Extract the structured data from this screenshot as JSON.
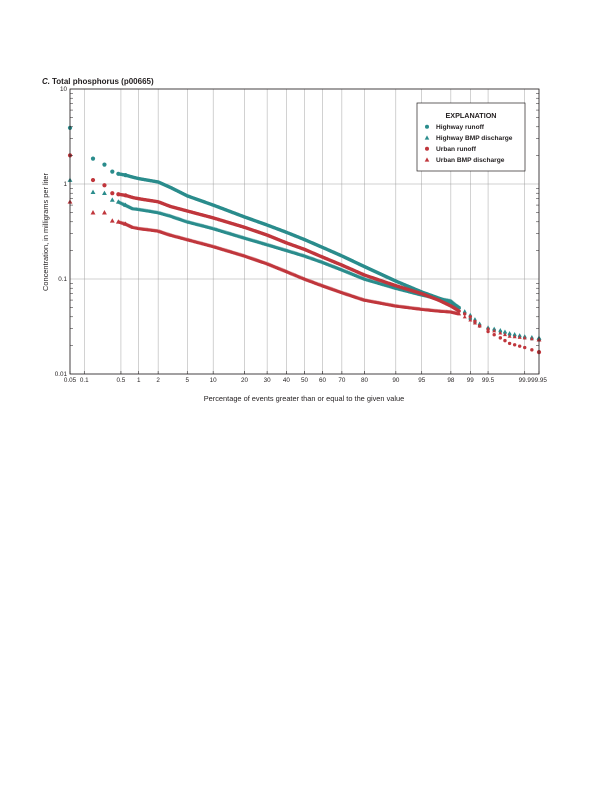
{
  "figure": {
    "panel_title_letter": "C.",
    "panel_title": "Total phosphorus (p00665)"
  },
  "chart_data": {
    "type": "scatter",
    "title": "C. Total phosphorus (p00665)",
    "xlabel": "Percentage of events greater than or equal to the given value",
    "ylabel": "Concentration, in milligrams per liter",
    "x_scale": "normal-probability",
    "y_scale": "log",
    "ylim": [
      0.01,
      10
    ],
    "xlim": [
      0.05,
      99.95
    ],
    "grid": true,
    "legend_placement": "top-right",
    "legend_title": "EXPLANATION",
    "x_ticks": [
      {
        "value": 0.05,
        "label": "0.05"
      },
      {
        "value": 0.1,
        "label": "0.1"
      },
      {
        "value": 0.5,
        "label": "0.5"
      },
      {
        "value": 1,
        "label": "1"
      },
      {
        "value": 2,
        "label": "2"
      },
      {
        "value": 5,
        "label": "5"
      },
      {
        "value": 10,
        "label": "10"
      },
      {
        "value": 20,
        "label": "20"
      },
      {
        "value": 30,
        "label": "30"
      },
      {
        "value": 40,
        "label": "40"
      },
      {
        "value": 50,
        "label": "50"
      },
      {
        "value": 60,
        "label": "60"
      },
      {
        "value": 70,
        "label": "70"
      },
      {
        "value": 80,
        "label": "80"
      },
      {
        "value": 90,
        "label": "90"
      },
      {
        "value": 95,
        "label": "95"
      },
      {
        "value": 98,
        "label": "98"
      },
      {
        "value": 99,
        "label": "99"
      },
      {
        "value": 99.5,
        "label": "99.5"
      },
      {
        "value": 99.9,
        "label": "99.9"
      },
      {
        "value": 99.95,
        "label": "99.95"
      }
    ],
    "y_ticks": [
      {
        "value": 0.01,
        "label": "0.01"
      },
      {
        "value": 0.1,
        "label": "0.1"
      },
      {
        "value": 1,
        "label": "1"
      },
      {
        "value": 10,
        "label": "10"
      }
    ],
    "series": [
      {
        "name": "Highway runoff",
        "marker": "circle",
        "color": "#2a8c8c",
        "points": [
          [
            0.05,
            3.9
          ],
          [
            0.15,
            1.85
          ],
          [
            0.25,
            1.6
          ],
          [
            0.35,
            1.35
          ],
          [
            0.45,
            1.28
          ],
          [
            0.6,
            1.24
          ],
          [
            0.8,
            1.18
          ],
          [
            1,
            1.14
          ],
          [
            2,
            1.05
          ],
          [
            3,
            0.92
          ],
          [
            5,
            0.75
          ],
          [
            10,
            0.6
          ],
          [
            20,
            0.45
          ],
          [
            30,
            0.37
          ],
          [
            40,
            0.31
          ],
          [
            50,
            0.26
          ],
          [
            60,
            0.215
          ],
          [
            70,
            0.175
          ],
          [
            80,
            0.135
          ],
          [
            90,
            0.095
          ],
          [
            95,
            0.073
          ],
          [
            97,
            0.063
          ],
          [
            98,
            0.057
          ],
          [
            98.5,
            0.05
          ],
          [
            99,
            0.038
          ],
          [
            99.3,
            0.032
          ],
          [
            99.5,
            0.03
          ],
          [
            99.7,
            0.028
          ],
          [
            99.8,
            0.026
          ],
          [
            99.9,
            0.024
          ],
          [
            99.95,
            0.023
          ]
        ]
      },
      {
        "name": "Highway BMP discharge",
        "marker": "triangle",
        "color": "#2a8c8c",
        "points": [
          [
            0.05,
            1.1
          ],
          [
            0.15,
            0.82
          ],
          [
            0.25,
            0.8
          ],
          [
            0.35,
            0.68
          ],
          [
            0.45,
            0.65
          ],
          [
            0.6,
            0.6
          ],
          [
            0.8,
            0.55
          ],
          [
            1,
            0.54
          ],
          [
            2,
            0.5
          ],
          [
            3,
            0.46
          ],
          [
            5,
            0.4
          ],
          [
            10,
            0.34
          ],
          [
            20,
            0.27
          ],
          [
            30,
            0.23
          ],
          [
            40,
            0.2
          ],
          [
            50,
            0.175
          ],
          [
            60,
            0.15
          ],
          [
            70,
            0.125
          ],
          [
            80,
            0.1
          ],
          [
            90,
            0.08
          ],
          [
            95,
            0.068
          ],
          [
            97,
            0.062
          ],
          [
            98,
            0.059
          ],
          [
            98.5,
            0.05
          ],
          [
            99,
            0.042
          ],
          [
            99.3,
            0.034
          ],
          [
            99.5,
            0.031
          ],
          [
            99.7,
            0.029
          ],
          [
            99.8,
            0.027
          ],
          [
            99.9,
            0.025
          ],
          [
            99.95,
            0.024
          ]
        ]
      },
      {
        "name": "Urban runoff",
        "marker": "circle",
        "color": "#c0363c",
        "points": [
          [
            0.05,
            2.0
          ],
          [
            0.15,
            1.1
          ],
          [
            0.25,
            0.97
          ],
          [
            0.35,
            0.8
          ],
          [
            0.45,
            0.78
          ],
          [
            0.6,
            0.76
          ],
          [
            0.8,
            0.72
          ],
          [
            1,
            0.7
          ],
          [
            2,
            0.65
          ],
          [
            3,
            0.58
          ],
          [
            5,
            0.52
          ],
          [
            10,
            0.44
          ],
          [
            20,
            0.35
          ],
          [
            30,
            0.29
          ],
          [
            40,
            0.24
          ],
          [
            50,
            0.205
          ],
          [
            60,
            0.17
          ],
          [
            70,
            0.14
          ],
          [
            80,
            0.11
          ],
          [
            90,
            0.085
          ],
          [
            95,
            0.07
          ],
          [
            97,
            0.06
          ],
          [
            98,
            0.052
          ],
          [
            98.5,
            0.046
          ],
          [
            99,
            0.04
          ],
          [
            99.3,
            0.032
          ],
          [
            99.5,
            0.028
          ],
          [
            99.7,
            0.024
          ],
          [
            99.8,
            0.021
          ],
          [
            99.9,
            0.019
          ],
          [
            99.95,
            0.017
          ]
        ]
      },
      {
        "name": "Urban BMP discharge",
        "marker": "triangle",
        "color": "#c0363c",
        "points": [
          [
            0.05,
            0.65
          ],
          [
            0.15,
            0.5
          ],
          [
            0.25,
            0.5
          ],
          [
            0.35,
            0.41
          ],
          [
            0.45,
            0.4
          ],
          [
            0.6,
            0.38
          ],
          [
            0.8,
            0.35
          ],
          [
            1,
            0.34
          ],
          [
            2,
            0.32
          ],
          [
            3,
            0.29
          ],
          [
            5,
            0.26
          ],
          [
            10,
            0.22
          ],
          [
            20,
            0.175
          ],
          [
            30,
            0.145
          ],
          [
            40,
            0.12
          ],
          [
            50,
            0.1
          ],
          [
            60,
            0.085
          ],
          [
            70,
            0.072
          ],
          [
            80,
            0.06
          ],
          [
            90,
            0.052
          ],
          [
            95,
            0.048
          ],
          [
            97,
            0.046
          ],
          [
            98,
            0.045
          ],
          [
            98.5,
            0.043
          ],
          [
            99,
            0.037
          ],
          [
            99.3,
            0.032
          ],
          [
            99.5,
            0.03
          ],
          [
            99.7,
            0.027
          ],
          [
            99.8,
            0.025
          ],
          [
            99.9,
            0.024
          ],
          [
            99.95,
            0.023
          ]
        ]
      }
    ]
  }
}
